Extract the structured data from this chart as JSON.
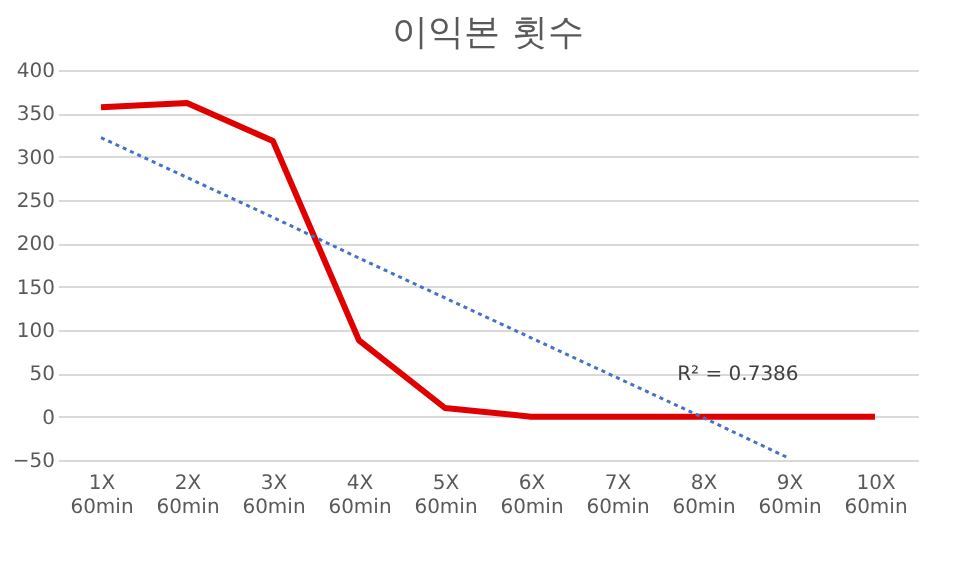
{
  "chart_data": {
    "type": "line",
    "title": "이익본 횟수",
    "categories": [
      "1X\n60min",
      "2X\n60min",
      "3X\n60min",
      "4X\n60min",
      "5X\n60min",
      "6X\n60min",
      "7X\n60min",
      "8X\n60min",
      "9X\n60min",
      "10X\n60min"
    ],
    "series": [
      {
        "color": "#e00000",
        "values": [
          357,
          362,
          318,
          88,
          10,
          0,
          0,
          0,
          0,
          0
        ]
      },
      {
        "type": "line",
        "color": "#4472c4",
        "line_style": "dotted",
        "x": [
          "1X\n60min",
          "2X\n60min",
          "3X\n60min",
          "4X\n60min",
          "5X\n60min",
          "6X\n60min",
          "7X\n60min",
          "8X\n60min",
          "9X\n60min"
        ],
        "values": [
          322,
          276,
          230,
          183,
          137,
          91,
          45,
          -1,
          -48
        ]
      }
    ],
    "ylim": [
      -50,
      400
    ],
    "yticks": [
      -50,
      0,
      50,
      100,
      150,
      200,
      250,
      300,
      350,
      400
    ],
    "grid": "y",
    "marker": "none",
    "annotations": [
      "R² = 0.7386"
    ]
  }
}
